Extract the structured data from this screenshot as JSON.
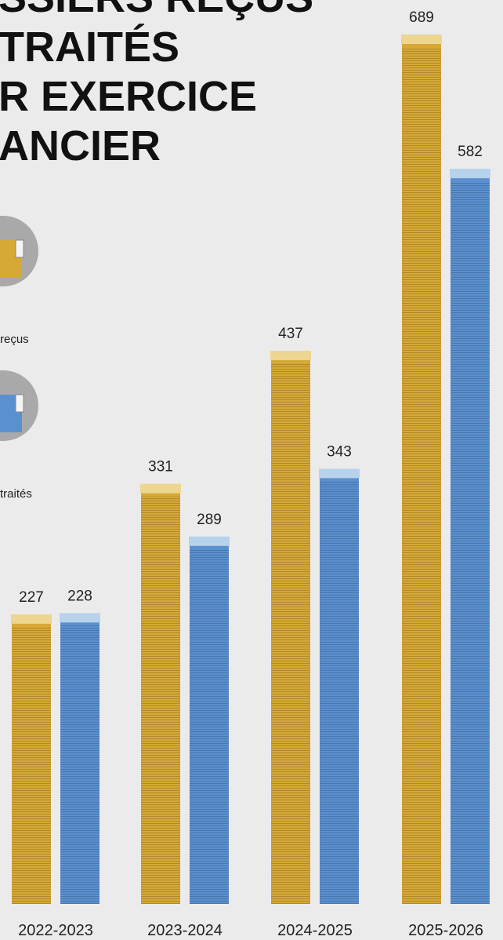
{
  "chart_data": {
    "type": "bar",
    "title_lines": [
      "SSIERS REÇUS",
      "TRAITÉS",
      "R EXERCICE",
      "ANCIER"
    ],
    "categories": [
      "2022-2023",
      "2023-2024",
      "2024-2025",
      "2025-2026"
    ],
    "series": [
      {
        "name": "reçus",
        "color": "#d6a836",
        "values": [
          227,
          331,
          437,
          689
        ]
      },
      {
        "name": "traités",
        "color": "#5a90d0",
        "values": [
          228,
          289,
          343,
          582
        ]
      }
    ]
  }
}
